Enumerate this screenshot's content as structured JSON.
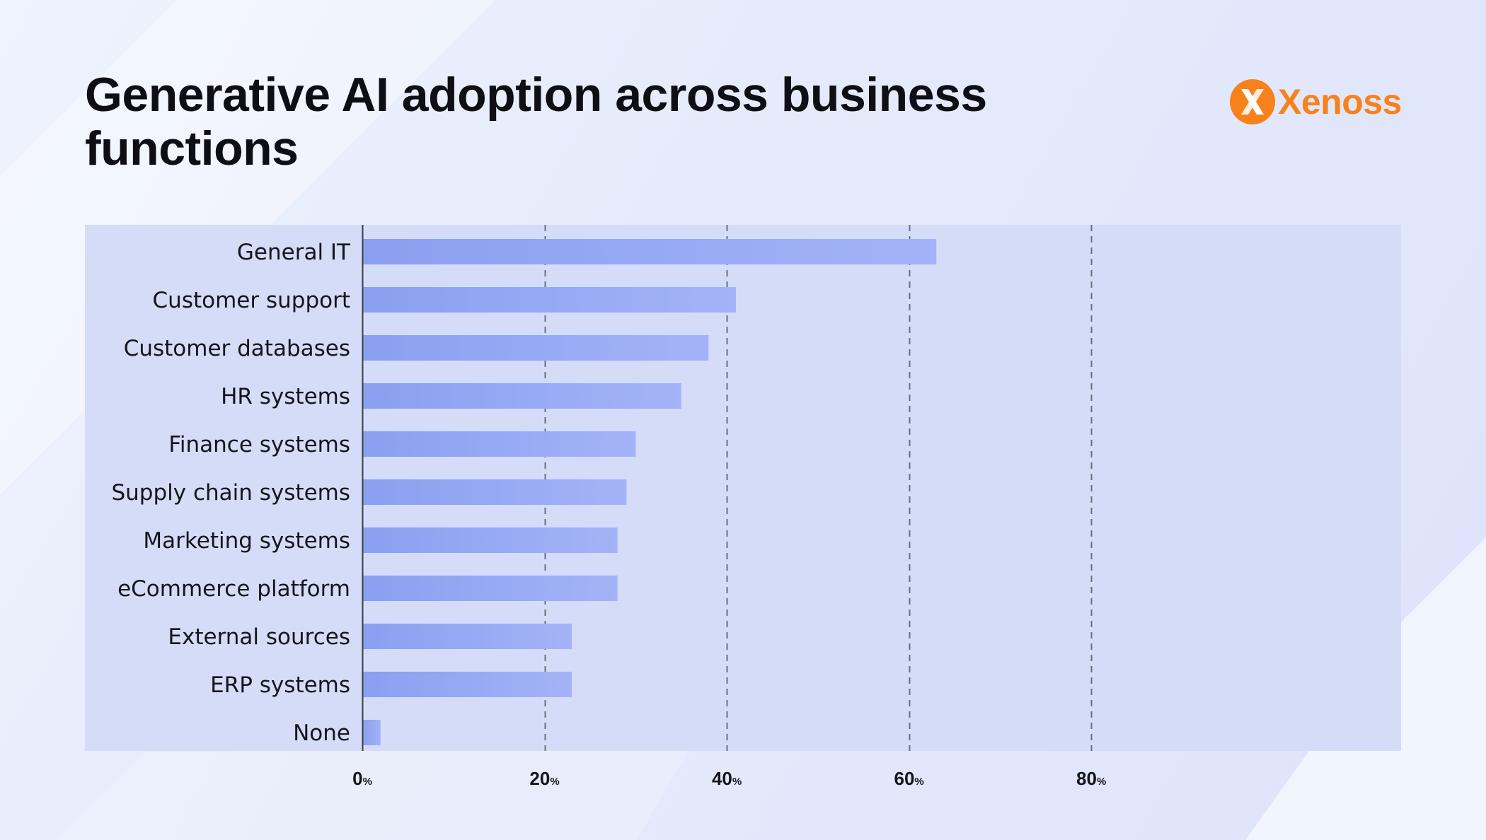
{
  "title": "Generative AI adoption across business functions",
  "brand": {
    "name": "Xenoss",
    "color": "#f7821b"
  },
  "colors": {
    "bar_start": "#8a9ff0",
    "bar_end": "#a3b3f7",
    "plot_bg": "#d4dcf8",
    "grid": "#6b6f7c"
  },
  "chart_data": {
    "type": "bar",
    "orientation": "horizontal",
    "title": "Generative AI adoption across business functions",
    "categories": [
      "General IT",
      "Customer support",
      "Customer databases",
      "HR systems",
      "Finance systems",
      "Supply chain systems",
      "Marketing systems",
      "eCommerce platform",
      "External sources",
      "ERP systems",
      "None"
    ],
    "values": [
      63,
      41,
      38,
      35,
      30,
      29,
      28,
      28,
      23,
      23,
      2
    ],
    "xlim": [
      0,
      114
    ],
    "xticks": [
      0,
      20,
      40,
      60,
      80
    ],
    "tick_labels": [
      "0",
      "20",
      "40",
      "60",
      "80"
    ],
    "tick_unit": "%",
    "grid": "vertical dashed",
    "xlabel": "",
    "ylabel": ""
  }
}
